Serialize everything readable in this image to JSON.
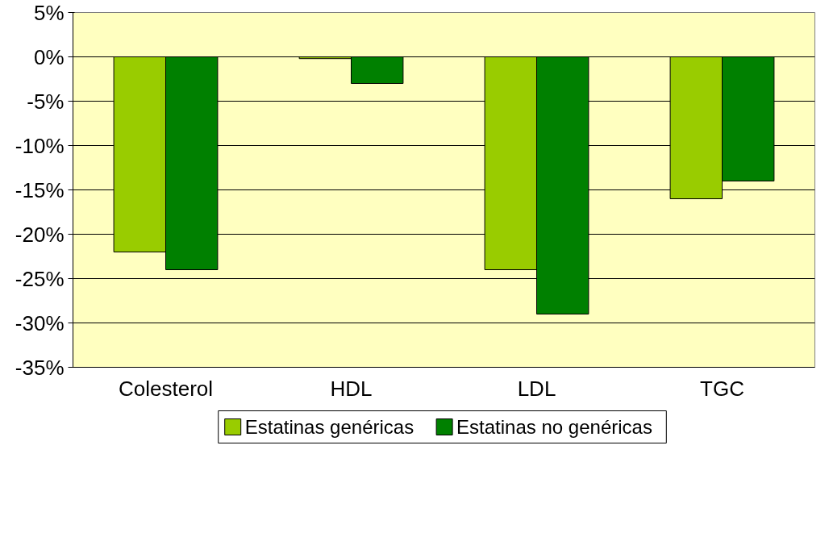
{
  "chart_data": {
    "type": "bar",
    "categories": [
      "Colesterol",
      "HDL",
      "LDL",
      "TGC"
    ],
    "series": [
      {
        "name": "Estatinas genéricas",
        "color": "#99cc00",
        "values": [
          -22,
          -0.2,
          -24,
          -16
        ]
      },
      {
        "name": "Estatinas no genéricas",
        "color": "#008000",
        "values": [
          -24,
          -3,
          -29,
          -14
        ]
      }
    ],
    "ylim": [
      -35,
      5
    ],
    "yticks": [
      {
        "value": 5,
        "label": "5%"
      },
      {
        "value": 0,
        "label": "0%"
      },
      {
        "value": -5,
        "label": "-5%"
      },
      {
        "value": -10,
        "label": "-10%"
      },
      {
        "value": -15,
        "label": "-15%"
      },
      {
        "value": -20,
        "label": "-20%"
      },
      {
        "value": -25,
        "label": "-25%"
      },
      {
        "value": -30,
        "label": "-30%"
      },
      {
        "value": -35,
        "label": "-35%"
      }
    ],
    "grid": "y",
    "legend": "bottom"
  }
}
